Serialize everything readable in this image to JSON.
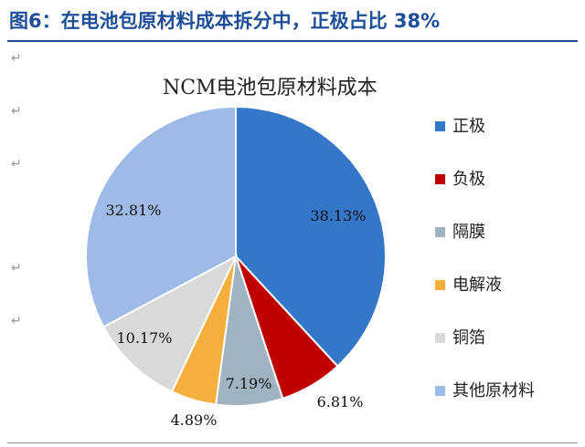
{
  "figure_title": "图6：在电池包原材料成本拆分中，正极占比 38%",
  "chart_data": {
    "type": "pie",
    "title": "NCM电池包原材料成本",
    "categories": [
      "正极",
      "负极",
      "隔膜",
      "电解液",
      "铜箔",
      "其他原材料"
    ],
    "values": [
      38.13,
      6.81,
      7.19,
      4.89,
      10.17,
      32.81
    ],
    "data_labels": [
      "38.13%",
      "6.81%",
      "7.19%",
      "4.89%",
      "10.17%",
      "32.81%"
    ],
    "colors": [
      "#3476c8",
      "#c00000",
      "#9fb3c0",
      "#f6ae3c",
      "#d9d9d9",
      "#9dbbe6"
    ],
    "legend_position": "right",
    "start_angle_deg": 0,
    "direction": "clockwise"
  }
}
